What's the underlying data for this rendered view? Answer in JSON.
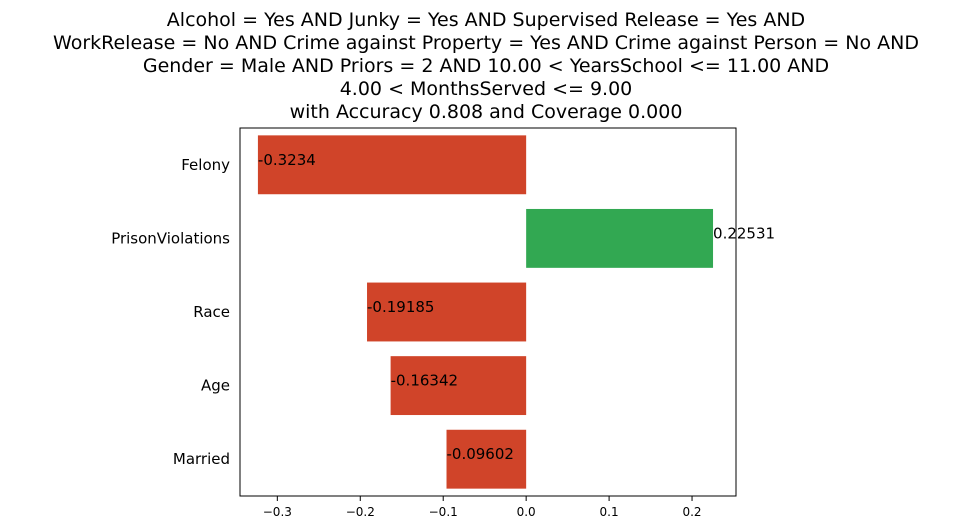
{
  "chart_data": {
    "type": "bar",
    "orientation": "horizontal",
    "title_lines": [
      "Alcohol = Yes AND Junky = Yes AND Supervised Release = Yes AND",
      "WorkRelease = No AND Crime against Property = Yes AND Crime against Person = No AND",
      "Gender = Male AND Priors = 2 AND 10.00 < YearsSchool <= 11.00 AND",
      "4.00 < MonthsServed <= 9.00",
      "with Accuracy 0.808 and Coverage 0.000"
    ],
    "categories": [
      "Felony",
      "PrisonViolations",
      "Race",
      "Age",
      "Married"
    ],
    "values": [
      -0.3234,
      0.22531,
      -0.19185,
      -0.16342,
      -0.09602
    ],
    "value_labels": [
      "-0.3234",
      "0.22531",
      "-0.19185",
      "-0.16342",
      "-0.09602"
    ],
    "xlim": [
      -0.345,
      0.253
    ],
    "xticks": [
      -0.3,
      -0.2,
      -0.1,
      0.0,
      0.1,
      0.2
    ],
    "xtick_labels": [
      "−0.3",
      "−0.2",
      "−0.1",
      "0.0",
      "0.1",
      "0.2"
    ],
    "colors": {
      "negative": "#d04429",
      "positive": "#32a852"
    },
    "grid": false
  }
}
